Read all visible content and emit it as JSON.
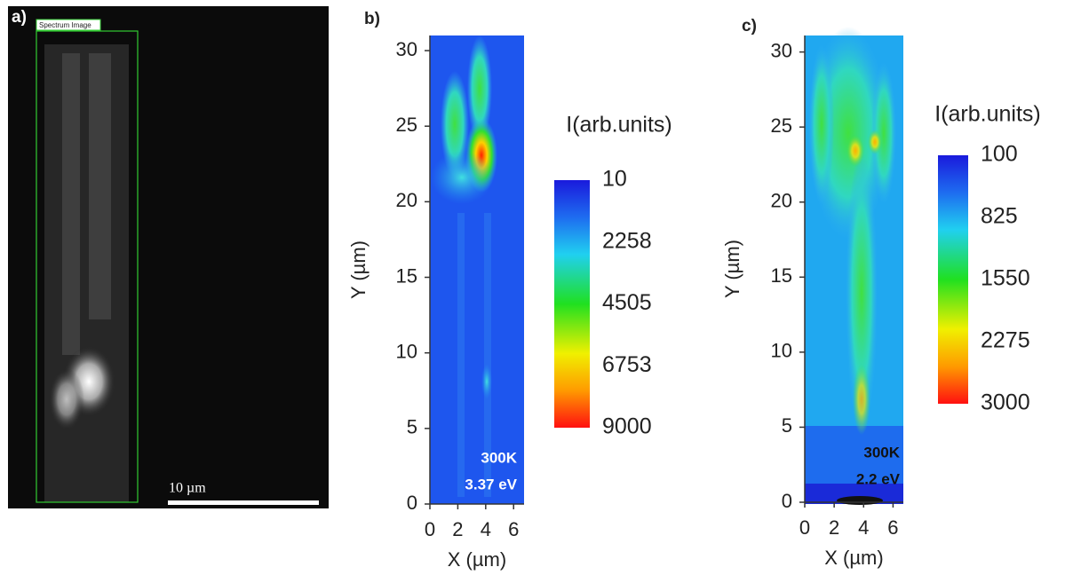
{
  "panel_a": {
    "label": "a)",
    "roi_label": "Spectrum Image",
    "scale_bar_label": "10 µm"
  },
  "panel_b": {
    "label": "b)",
    "x_label": "X (µm)",
    "y_label": "Y (µm)",
    "xlim": [
      0,
      6.75
    ],
    "ylim": [
      0,
      31
    ],
    "xticks": [
      0,
      2,
      4,
      6
    ],
    "yticks": [
      0,
      5,
      10,
      15,
      20,
      25,
      30
    ],
    "colorbar_title": "I(arb.units)",
    "colorbar_ticks": [
      10,
      2258,
      4505,
      6753,
      9000
    ],
    "annotations": [
      "300K",
      "3.37 eV"
    ]
  },
  "panel_c": {
    "label": "c)",
    "x_label": "X (µm)",
    "y_label": "Y (µm)",
    "xlim": [
      0,
      6.7
    ],
    "ylim": [
      0,
      31.1
    ],
    "xticks": [
      0,
      2,
      4,
      6
    ],
    "yticks": [
      0,
      5,
      10,
      15,
      20,
      25,
      30
    ],
    "colorbar_title": "I(arb.units)",
    "colorbar_ticks": [
      100,
      825,
      1550,
      2275,
      3000
    ],
    "annotations": [
      "300K",
      "2.2 eV"
    ]
  }
}
